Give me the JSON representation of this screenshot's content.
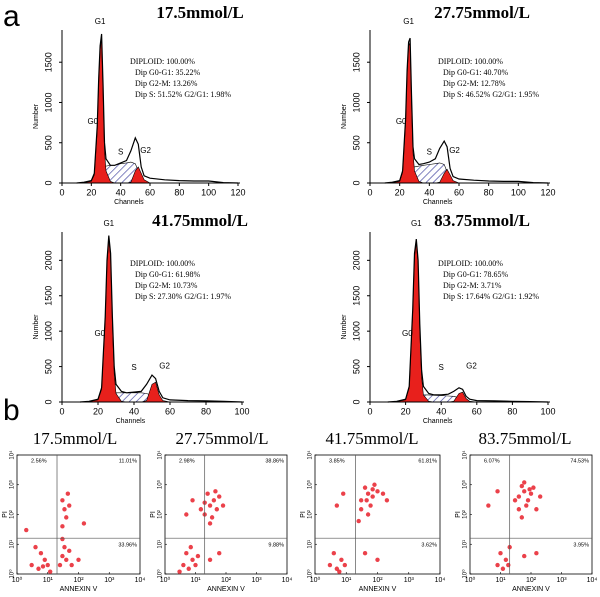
{
  "panel_labels": [
    "a",
    "b"
  ],
  "chart_data": [
    {
      "type": "area",
      "title": "17.5mmol/L",
      "xlabel": "Channels",
      "ylabel": "Number",
      "x": [
        10,
        15,
        20,
        22,
        24,
        25,
        26,
        27,
        28,
        29,
        30,
        33,
        36,
        40,
        44,
        47,
        50,
        52,
        54,
        56,
        60,
        70,
        80,
        90,
        100,
        110,
        120
      ],
      "series": [
        {
          "style": "hatch",
          "color": "#3d3f9e",
          "values": [
            0,
            0,
            0,
            0,
            20,
            50,
            100,
            150,
            180,
            200,
            210,
            220,
            220,
            240,
            250,
            260,
            240,
            150,
            50,
            10,
            0,
            0,
            0,
            0,
            0,
            0,
            0
          ]
        },
        {
          "style": "fill",
          "color": "#e8201c",
          "values": [
            0,
            5,
            20,
            100,
            650,
            1250,
            1650,
            1800,
            1100,
            400,
            150,
            20,
            0,
            0,
            0,
            10,
            150,
            200,
            120,
            40,
            0,
            0,
            0,
            0,
            0,
            0,
            0
          ]
        },
        {
          "style": "line",
          "color": "#000000",
          "values": [
            0,
            10,
            30,
            120,
            700,
            1300,
            1700,
            1850,
            1200,
            500,
            300,
            220,
            220,
            250,
            280,
            400,
            560,
            480,
            200,
            90,
            60,
            40,
            30,
            25,
            25,
            5,
            0
          ]
        }
      ],
      "annotations": [
        "G1",
        "G0",
        "S",
        "G2"
      ],
      "stats": [
        "DIPLOID: 100.00%",
        "Dip G0-G1: 35.22%",
        "Dip G2-M: 13.26%",
        "Dip S: 51.52%   G2/G1: 1.98%"
      ],
      "xlim": [
        0,
        120
      ],
      "ylim": [
        0,
        1900
      ],
      "xticks": [
        0,
        20,
        40,
        60,
        80,
        100,
        120
      ],
      "yticks": [
        0,
        500,
        1000,
        1500
      ]
    },
    {
      "type": "area",
      "title": "27.75mmol/L",
      "xlabel": "Channels",
      "ylabel": "Number",
      "x": [
        10,
        15,
        20,
        22,
        24,
        25,
        26,
        27,
        28,
        29,
        30,
        33,
        36,
        40,
        44,
        47,
        50,
        52,
        54,
        56,
        60,
        70,
        80,
        90,
        100,
        110,
        120
      ],
      "series": [
        {
          "style": "hatch",
          "color": "#3d3f9e",
          "values": [
            0,
            0,
            0,
            0,
            20,
            50,
            90,
            130,
            170,
            190,
            200,
            210,
            220,
            230,
            240,
            250,
            230,
            140,
            50,
            10,
            0,
            0,
            0,
            0,
            0,
            0,
            0
          ]
        },
        {
          "style": "fill",
          "color": "#e8201c",
          "values": [
            0,
            5,
            20,
            130,
            750,
            1350,
            1700,
            1750,
            1000,
            380,
            150,
            20,
            0,
            0,
            0,
            10,
            120,
            170,
            100,
            30,
            0,
            0,
            0,
            0,
            0,
            0,
            0
          ]
        },
        {
          "style": "line",
          "color": "#000000",
          "values": [
            0,
            10,
            30,
            150,
            800,
            1400,
            1750,
            1800,
            1100,
            450,
            300,
            230,
            240,
            260,
            300,
            430,
            520,
            450,
            180,
            80,
            50,
            35,
            25,
            20,
            20,
            5,
            0
          ]
        }
      ],
      "annotations": [
        "G1",
        "G0",
        "S",
        "G2"
      ],
      "stats": [
        "DIPLOID: 100.00%",
        "Dip G0-G1: 40.70%",
        "Dip G2-M: 12.78%",
        "Dip S: 46.52%   G2/G1: 1.95%"
      ],
      "xlim": [
        0,
        120
      ],
      "ylim": [
        0,
        1900
      ],
      "xticks": [
        0,
        20,
        40,
        60,
        80,
        100,
        120
      ],
      "yticks": [
        0,
        500,
        1000,
        1500
      ]
    },
    {
      "type": "area",
      "title": "41.75mmol/L",
      "xlabel": "Channels",
      "ylabel": "Number",
      "x": [
        10,
        15,
        20,
        22,
        24,
        25,
        26,
        27,
        28,
        29,
        30,
        33,
        36,
        40,
        44,
        47,
        50,
        52,
        54,
        56,
        60,
        70,
        80,
        90,
        100
      ],
      "series": [
        {
          "style": "hatch",
          "color": "#3d3f9e",
          "values": [
            0,
            0,
            0,
            0,
            20,
            40,
            60,
            90,
            110,
            120,
            130,
            130,
            130,
            130,
            130,
            120,
            90,
            50,
            20,
            0,
            0,
            0,
            0,
            0,
            0
          ]
        },
        {
          "style": "fill",
          "color": "#e8201c",
          "values": [
            0,
            5,
            30,
            180,
            1150,
            1950,
            2300,
            2050,
            1100,
            400,
            120,
            10,
            0,
            0,
            0,
            20,
            250,
            280,
            100,
            20,
            0,
            0,
            0,
            0,
            0
          ]
        },
        {
          "style": "line",
          "color": "#000000",
          "values": [
            0,
            10,
            40,
            200,
            1200,
            2000,
            2350,
            2100,
            1200,
            500,
            250,
            150,
            130,
            140,
            150,
            250,
            380,
            330,
            150,
            60,
            30,
            20,
            15,
            10,
            0
          ]
        }
      ],
      "annotations": [
        "G1",
        "G0",
        "S",
        "G2"
      ],
      "stats": [
        "DIPLOID: 100.00%",
        "Dip G0-G1: 61.98%",
        "Dip G2-M: 10.73%",
        "Dip S: 27.30%   G2/G1: 1.97%"
      ],
      "xlim": [
        0,
        100
      ],
      "ylim": [
        0,
        2400
      ],
      "xticks": [
        0,
        20,
        40,
        60,
        80,
        100
      ],
      "yticks": [
        0,
        500,
        1000,
        1500,
        2000
      ]
    },
    {
      "type": "area",
      "title": "83.75mmol/L",
      "xlabel": "Channels",
      "ylabel": "Number",
      "x": [
        10,
        15,
        20,
        22,
        24,
        25,
        26,
        27,
        28,
        29,
        30,
        33,
        36,
        40,
        44,
        47,
        50,
        52,
        54,
        56,
        60,
        70,
        80,
        90,
        100
      ],
      "series": [
        {
          "style": "hatch",
          "color": "#3d3f9e",
          "values": [
            0,
            0,
            0,
            0,
            15,
            30,
            50,
            70,
            90,
            100,
            100,
            100,
            95,
            90,
            85,
            80,
            60,
            30,
            10,
            0,
            0,
            0,
            0,
            0,
            0
          ]
        },
        {
          "style": "fill",
          "color": "#e8201c",
          "values": [
            0,
            5,
            30,
            200,
            1250,
            2050,
            2250,
            1950,
            1000,
            350,
            100,
            10,
            0,
            0,
            0,
            10,
            120,
            140,
            50,
            10,
            0,
            0,
            0,
            0,
            0
          ]
        },
        {
          "style": "line",
          "color": "#000000",
          "values": [
            0,
            10,
            40,
            220,
            1300,
            2100,
            2300,
            2000,
            1100,
            450,
            220,
            120,
            100,
            100,
            110,
            150,
            200,
            180,
            80,
            40,
            20,
            15,
            10,
            5,
            0
          ]
        }
      ],
      "annotations": [
        "G1",
        "G0",
        "S",
        "G2"
      ],
      "stats": [
        "DIPLOID: 100.00%",
        "Dip G0-G1: 78.65%",
        "Dip G2-M: 3.71%",
        "Dip S: 17.64%   G2/G1: 1.92%"
      ],
      "xlim": [
        0,
        100
      ],
      "ylim": [
        0,
        2400
      ],
      "xticks": [
        0,
        20,
        40,
        60,
        80,
        100
      ],
      "yticks": [
        0,
        500,
        1000,
        1500,
        2000
      ]
    },
    {
      "type": "scatter",
      "title": "17.5mmol/L",
      "xlabel": "ANNEXIN V",
      "ylabel": "PI",
      "color": "#e8202a",
      "x": [
        3,
        5,
        8,
        6,
        10,
        4,
        12,
        7,
        25,
        30,
        40,
        50,
        35,
        60,
        30,
        30,
        40,
        35,
        50,
        30,
        45,
        100,
        2,
        150
      ],
      "y": [
        2,
        1.5,
        3,
        5,
        2,
        8,
        1.2,
        1.8,
        2,
        4,
        3,
        6,
        8,
        2,
        15,
        40,
        80,
        150,
        200,
        300,
        500,
        3,
        30,
        50
      ],
      "xscale": "log",
      "yscale": "log",
      "xlim": [
        1,
        10000
      ],
      "ylim": [
        1,
        10000
      ],
      "xticks": [
        {
          "value": 1,
          "label": "10⁰"
        },
        {
          "value": 10,
          "label": "10¹"
        },
        {
          "value": 100,
          "label": "10²"
        },
        {
          "value": 1000,
          "label": "10³"
        },
        {
          "value": 10000,
          "label": "10⁴"
        }
      ],
      "yticks": [
        {
          "value": 1,
          "label": "10⁰"
        },
        {
          "value": 10,
          "label": "10¹"
        },
        {
          "value": 100,
          "label": "10²"
        },
        {
          "value": 1000,
          "label": "10³"
        },
        {
          "value": 10000,
          "label": "10⁴"
        }
      ],
      "gate_x": 20,
      "gate_y": 16,
      "quadrants": {
        "upper_left": "2.56%",
        "upper_right": "11.01%",
        "lower_right": "33.96%"
      }
    },
    {
      "type": "scatter",
      "title": "27.75mmol/L",
      "xlabel": "ANNEXIN V",
      "ylabel": "PI",
      "color": "#e8202a",
      "x": [
        4,
        6,
        8,
        5,
        10,
        3,
        7,
        12,
        30,
        60,
        20,
        30,
        40,
        25,
        50,
        35,
        60,
        20,
        45,
        30,
        80,
        15,
        5,
        8
      ],
      "y": [
        2,
        1.5,
        3,
        5,
        2,
        1.2,
        8,
        4,
        3,
        5,
        100,
        200,
        300,
        500,
        150,
        80,
        400,
        250,
        600,
        50,
        200,
        150,
        100,
        300
      ],
      "xscale": "log",
      "yscale": "log",
      "xlim": [
        1,
        10000
      ],
      "ylim": [
        1,
        10000
      ],
      "xticks": [
        {
          "value": 1,
          "label": "10⁰"
        },
        {
          "value": 10,
          "label": "10¹"
        },
        {
          "value": 100,
          "label": "10²"
        },
        {
          "value": 1000,
          "label": "10³"
        },
        {
          "value": 10000,
          "label": "10⁴"
        }
      ],
      "yticks": [
        {
          "value": 1,
          "label": "10⁰"
        },
        {
          "value": 10,
          "label": "10¹"
        },
        {
          "value": 100,
          "label": "10²"
        },
        {
          "value": 1000,
          "label": "10³"
        },
        {
          "value": 10000,
          "label": "10⁴"
        }
      ],
      "gate_x": 20,
      "gate_y": 16,
      "quadrants": {
        "upper_left": "2.98%",
        "upper_right": "38.86%",
        "lower_right": "9.88%"
      }
    },
    {
      "type": "scatter",
      "title": "41.75mmol/L",
      "xlabel": "ANNEXIN V",
      "ylabel": "PI",
      "color": "#e8202a",
      "x": [
        3,
        5,
        7,
        4,
        9,
        6,
        40,
        100,
        30,
        50,
        70,
        40,
        60,
        100,
        80,
        30,
        50,
        150,
        45,
        70,
        200,
        25,
        5,
        8
      ],
      "y": [
        2,
        1.5,
        3,
        5,
        2,
        1.2,
        5,
        3,
        300,
        500,
        400,
        800,
        200,
        600,
        1000,
        150,
        100,
        500,
        300,
        700,
        300,
        60,
        200,
        500
      ],
      "xscale": "log",
      "yscale": "log",
      "xlim": [
        1,
        10000
      ],
      "ylim": [
        1,
        10000
      ],
      "xticks": [
        {
          "value": 1,
          "label": "10⁰"
        },
        {
          "value": 10,
          "label": "10¹"
        },
        {
          "value": 100,
          "label": "10²"
        },
        {
          "value": 1000,
          "label": "10³"
        },
        {
          "value": 10000,
          "label": "10⁴"
        }
      ],
      "yticks": [
        {
          "value": 1,
          "label": "10⁰"
        },
        {
          "value": 10,
          "label": "10¹"
        },
        {
          "value": 100,
          "label": "10²"
        },
        {
          "value": 1000,
          "label": "10³"
        },
        {
          "value": 10000,
          "label": "10⁴"
        }
      ],
      "gate_x": 20,
      "gate_y": 16,
      "quadrants": {
        "upper_left": "3.85%",
        "upper_right": "61.81%",
        "lower_right": "3.62%"
      }
    },
    {
      "type": "scatter",
      "title": "83.75mmol/L",
      "xlabel": "ANNEXIN V",
      "ylabel": "PI",
      "color": "#e8202a",
      "x": [
        8,
        12,
        15,
        10,
        18,
        20,
        60,
        150,
        40,
        60,
        80,
        50,
        100,
        70,
        120,
        40,
        200,
        60,
        90,
        30,
        150,
        50,
        4,
        8
      ],
      "y": [
        2,
        1.5,
        3,
        5,
        2,
        8,
        4,
        5,
        400,
        600,
        300,
        900,
        500,
        200,
        800,
        150,
        400,
        1200,
        700,
        300,
        150,
        80,
        200,
        600
      ],
      "xscale": "log",
      "yscale": "log",
      "xlim": [
        1,
        10000
      ],
      "ylim": [
        1,
        10000
      ],
      "xticks": [
        {
          "value": 1,
          "label": "10⁰"
        },
        {
          "value": 10,
          "label": "10¹"
        },
        {
          "value": 100,
          "label": "10²"
        },
        {
          "value": 1000,
          "label": "10³"
        },
        {
          "value": 10000,
          "label": "10⁴"
        }
      ],
      "yticks": [
        {
          "value": 1,
          "label": "10⁰"
        },
        {
          "value": 10,
          "label": "10¹"
        },
        {
          "value": 100,
          "label": "10²"
        },
        {
          "value": 1000,
          "label": "10³"
        },
        {
          "value": 10000,
          "label": "10⁴"
        }
      ],
      "gate_x": 20,
      "gate_y": 16,
      "quadrants": {
        "upper_left": "6.07%",
        "upper_right": "74.53%",
        "lower_right": "3.95%"
      }
    }
  ]
}
